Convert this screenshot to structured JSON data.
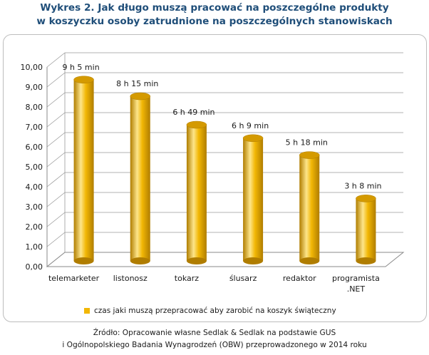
{
  "title": {
    "line1": "Wykres 2. Jak długo muszą pracować na poszczególne produkty",
    "line2": "w koszyczku osoby zatrudnione na poszczególnych stanowiskach"
  },
  "chart_data": {
    "type": "bar",
    "categories": [
      "telemarketer",
      "listonosz",
      "tokarz",
      "ślusarz",
      "redaktor",
      "programista .NET"
    ],
    "category_lines": [
      [
        "telemarketer"
      ],
      [
        "listonosz"
      ],
      [
        "tokarz"
      ],
      [
        "ślusarz"
      ],
      [
        "redaktor"
      ],
      [
        "programista",
        ".NET"
      ]
    ],
    "series": [
      {
        "name": "czas jaki muszą przepracować aby zarobić na koszyk świąteczny",
        "values": [
          9.08,
          8.25,
          6.82,
          6.15,
          5.3,
          3.13
        ],
        "labels": [
          "9 h 5 min",
          "8 h 15 min",
          "6 h 49 min",
          "6 h 9 min",
          "5 h 18 min",
          "3 h 8 min"
        ]
      }
    ],
    "ylim": [
      0,
      10
    ],
    "yticks": [
      "0,00",
      "1,00",
      "2,00",
      "3,00",
      "4,00",
      "5,00",
      "6,00",
      "7,00",
      "8,00",
      "9,00",
      "10,00"
    ],
    "grid": true,
    "legend_position": "bottom",
    "colors": {
      "bar": "#f2b705",
      "bar_light": "#fde58a",
      "bar_dark": "#b07d00",
      "bar_top": "#d49a00"
    }
  },
  "legend": {
    "label": "czas jaki muszą przepracować aby zarobić na koszyk świąteczny"
  },
  "source": {
    "line1": "Źródło: Opracowanie własne Sedlak & Sedlak na podstawie  GUS",
    "line2": "i Ogólnopolskiego Badania Wynagrodzeń (OBW) przeprowadzonego w 2014 roku"
  }
}
